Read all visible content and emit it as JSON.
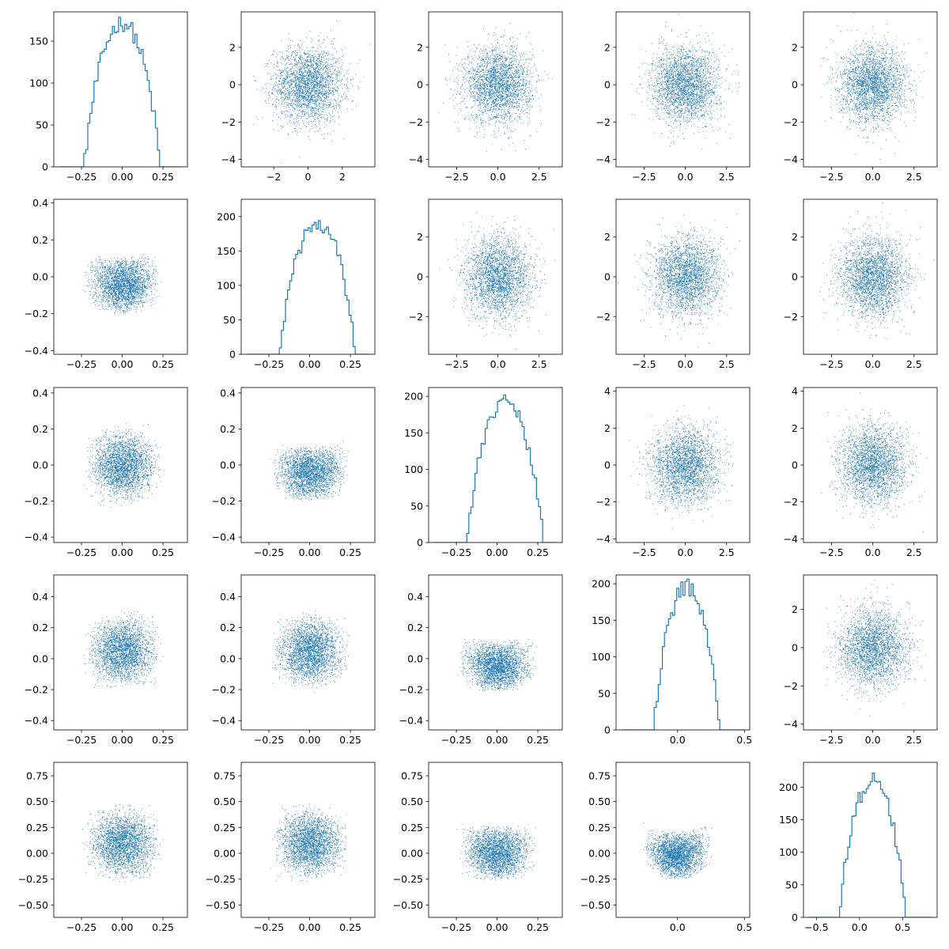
{
  "figure": {
    "background": "#ffffff",
    "series_color": "#1f77b4"
  },
  "chart_data": {
    "type": "pairplot",
    "description_note": "",
    "rows": 5,
    "cols": 5,
    "dims": [
      {
        "ylim": [
          -4.4,
          3.9
        ],
        "yticks": [
          -4,
          -2,
          0,
          2
        ],
        "xlim": [
          -3.9,
          3.9
        ],
        "xticks_first_col": [
          -2,
          0,
          2
        ]
      },
      {
        "ylim": [
          -3.9,
          3.9
        ],
        "yticks": [
          -2,
          0,
          2
        ],
        "xlim": [
          -4.2,
          3.9
        ],
        "xticks": [
          -2.5,
          0.0,
          2.5
        ]
      },
      {
        "ylim": [
          -4.2,
          4.2
        ],
        "yticks": [
          -4,
          -2,
          0,
          2,
          4
        ],
        "xlim": [
          -4.2,
          3.9
        ],
        "xticks": [
          -2.5,
          0.0,
          2.5
        ]
      },
      {
        "ylim": [
          -4.3,
          3.8
        ],
        "yticks": [
          -4,
          -2,
          0,
          2
        ],
        "xlim": [
          -4.2,
          3.9
        ],
        "xticks": [
          -2.5,
          0.0,
          2.5
        ]
      },
      {
        "ylim": [
          -4.3,
          3.8
        ],
        "yticks": [
          -4,
          -2,
          0,
          2
        ],
        "xlim": [
          -4.2,
          3.9
        ],
        "xticks": [
          -2.5,
          0.0,
          2.5
        ]
      }
    ],
    "panels": [
      [
        {
          "kind": "hist",
          "xlim": [
            -0.42,
            0.4
          ],
          "xticks": [
            -0.25,
            0.0,
            0.25
          ],
          "ylim": [
            0,
            185
          ],
          "yticks": [
            0,
            50,
            100,
            150
          ],
          "center": 0.0,
          "spread": 0.15,
          "peak": 172
        },
        {
          "kind": "scatter",
          "xlim": [
            -3.9,
            3.9
          ],
          "xticks": [
            -2,
            0,
            2
          ],
          "ylim": [
            -4.4,
            3.9
          ],
          "yticks": [
            -4,
            -2,
            0,
            2
          ],
          "shape": "gauss"
        },
        {
          "kind": "scatter",
          "xlim": [
            -4.2,
            3.9
          ],
          "xticks": [
            -2.5,
            0.0,
            2.5
          ],
          "ylim": [
            -4.4,
            3.9
          ],
          "yticks": [
            -4,
            -2,
            0,
            2
          ],
          "shape": "gauss"
        },
        {
          "kind": "scatter",
          "xlim": [
            -4.2,
            3.9
          ],
          "xticks": [
            -2.5,
            0.0,
            2.5
          ],
          "ylim": [
            -4.4,
            3.9
          ],
          "yticks": [
            -4,
            -2,
            0,
            2
          ],
          "shape": "gauss"
        },
        {
          "kind": "scatter",
          "xlim": [
            -4.2,
            3.9
          ],
          "xticks": [
            -2.5,
            0.0,
            2.5
          ],
          "ylim": [
            -4.4,
            3.9
          ],
          "yticks": [
            -4,
            -2,
            0,
            2
          ],
          "shape": "gauss"
        }
      ],
      [
        {
          "kind": "scatter",
          "xlim": [
            -0.42,
            0.4
          ],
          "xticks": [
            -0.25,
            0.0,
            0.25
          ],
          "ylim": [
            -0.42,
            0.42
          ],
          "yticks": [
            -0.4,
            -0.2,
            0.0,
            0.2,
            0.4
          ],
          "shape": "vee",
          "sx": 0.15,
          "sy": 0.13,
          "curv": 0.8
        },
        {
          "kind": "hist",
          "xlim": [
            -0.42,
            0.4
          ],
          "xticks": [
            -0.25,
            0.0,
            0.25
          ],
          "ylim": [
            0,
            225
          ],
          "yticks": [
            0,
            50,
            100,
            150,
            200
          ],
          "center": 0.05,
          "spread": 0.15,
          "peak": 190
        },
        {
          "kind": "scatter",
          "xlim": [
            -4.2,
            3.9
          ],
          "xticks": [
            -2.5,
            0.0,
            2.5
          ],
          "ylim": [
            -3.9,
            3.9
          ],
          "yticks": [
            -2,
            0,
            2
          ],
          "shape": "gauss"
        },
        {
          "kind": "scatter",
          "xlim": [
            -4.2,
            3.9
          ],
          "xticks": [
            -2.5,
            0.0,
            2.5
          ],
          "ylim": [
            -3.9,
            3.9
          ],
          "yticks": [
            -2,
            0,
            2
          ],
          "shape": "gauss"
        },
        {
          "kind": "scatter",
          "xlim": [
            -4.2,
            3.9
          ],
          "xticks": [
            -2.5,
            0.0,
            2.5
          ],
          "ylim": [
            -3.9,
            3.9
          ],
          "yticks": [
            -2,
            0,
            2
          ],
          "shape": "gauss"
        }
      ],
      [
        {
          "kind": "scatter",
          "xlim": [
            -0.42,
            0.4
          ],
          "xticks": [
            -0.25,
            0.0,
            0.25
          ],
          "ylim": [
            -0.43,
            0.43
          ],
          "yticks": [
            -0.4,
            -0.2,
            0.0,
            0.2,
            0.4
          ],
          "shape": "box",
          "sx": 0.15,
          "sy": 0.14
        },
        {
          "kind": "scatter",
          "xlim": [
            -0.42,
            0.4
          ],
          "xticks": [
            -0.25,
            0.0,
            0.25
          ],
          "ylim": [
            -0.43,
            0.43
          ],
          "yticks": [
            -0.4,
            -0.2,
            0.0,
            0.2,
            0.4
          ],
          "shape": "vee",
          "sx": 0.15,
          "sy": 0.13,
          "curv": 0.7
        },
        {
          "kind": "hist",
          "xlim": [
            -0.42,
            0.4
          ],
          "xticks": [
            -0.25,
            0.0,
            0.25
          ],
          "ylim": [
            0,
            212
          ],
          "yticks": [
            0,
            50,
            100,
            150,
            200
          ],
          "center": 0.05,
          "spread": 0.15,
          "peak": 195
        },
        {
          "kind": "scatter",
          "xlim": [
            -4.2,
            3.9
          ],
          "xticks": [
            -2.5,
            0.0,
            2.5
          ],
          "ylim": [
            -4.2,
            4.2
          ],
          "yticks": [
            -4,
            -2,
            0,
            2,
            4
          ],
          "shape": "gauss"
        },
        {
          "kind": "scatter",
          "xlim": [
            -4.2,
            3.9
          ],
          "xticks": [
            -2.5,
            0.0,
            2.5
          ],
          "ylim": [
            -4.2,
            4.2
          ],
          "yticks": [
            -4,
            -2,
            0,
            2,
            4
          ],
          "shape": "gauss"
        }
      ],
      [
        {
          "kind": "scatter",
          "xlim": [
            -0.42,
            0.4
          ],
          "xticks": [
            -0.25,
            0.0,
            0.25
          ],
          "ylim": [
            -0.46,
            0.54
          ],
          "yticks": [
            -0.4,
            -0.2,
            0.0,
            0.2,
            0.4
          ],
          "shape": "box",
          "sx": 0.15,
          "sy": 0.16,
          "cy": 0.05
        },
        {
          "kind": "scatter",
          "xlim": [
            -0.42,
            0.4
          ],
          "xticks": [
            -0.25,
            0.0,
            0.25
          ],
          "ylim": [
            -0.46,
            0.54
          ],
          "yticks": [
            -0.4,
            -0.2,
            0.0,
            0.2,
            0.4
          ],
          "shape": "box",
          "sx": 0.15,
          "sy": 0.16,
          "cy": 0.05
        },
        {
          "kind": "scatter",
          "xlim": [
            -0.42,
            0.4
          ],
          "xticks": [
            -0.25,
            0.0,
            0.25
          ],
          "ylim": [
            -0.46,
            0.54
          ],
          "yticks": [
            -0.4,
            -0.2,
            0.0,
            0.2,
            0.4
          ],
          "shape": "vee",
          "sx": 0.15,
          "sy": 0.14,
          "curv": 0.9
        },
        {
          "kind": "hist",
          "xlim": [
            -0.46,
            0.54
          ],
          "xticks": [
            0.0,
            0.5
          ],
          "ylim": [
            0,
            212
          ],
          "yticks": [
            0,
            50,
            100,
            150,
            200
          ],
          "center": 0.07,
          "spread": 0.16,
          "peak": 195
        },
        {
          "kind": "scatter",
          "xlim": [
            -4.2,
            3.9
          ],
          "xticks": [
            -2.5,
            0.0,
            2.5
          ],
          "ylim": [
            -4.3,
            3.8
          ],
          "yticks": [
            -4,
            -2,
            0,
            2
          ],
          "shape": "gauss"
        }
      ],
      [
        {
          "kind": "scatter",
          "xlim": [
            -0.42,
            0.4
          ],
          "xticks": [
            -0.25,
            0.0,
            0.25
          ],
          "ylim": [
            -0.62,
            0.88
          ],
          "yticks": [
            -0.5,
            -0.25,
            0.0,
            0.25,
            0.5,
            0.75
          ],
          "shape": "box",
          "sx": 0.15,
          "sy": 0.24,
          "cy": 0.1
        },
        {
          "kind": "scatter",
          "xlim": [
            -0.42,
            0.4
          ],
          "xticks": [
            -0.25,
            0.0,
            0.25
          ],
          "ylim": [
            -0.62,
            0.88
          ],
          "yticks": [
            -0.5,
            -0.25,
            0.0,
            0.25,
            0.5,
            0.75
          ],
          "shape": "box",
          "sx": 0.15,
          "sy": 0.24,
          "cy": 0.1
        },
        {
          "kind": "scatter",
          "xlim": [
            -0.42,
            0.4
          ],
          "xticks": [
            -0.25,
            0.0,
            0.25
          ],
          "ylim": [
            -0.62,
            0.88
          ],
          "yticks": [
            -0.5,
            -0.25,
            0.0,
            0.25,
            0.5,
            0.75
          ],
          "shape": "vee",
          "sx": 0.15,
          "sy": 0.22,
          "curv": 0.8,
          "cy": 0.08
        },
        {
          "kind": "scatter",
          "xlim": [
            -0.46,
            0.54
          ],
          "xticks": [
            0.0,
            0.5
          ],
          "ylim": [
            -0.62,
            0.88
          ],
          "yticks": [
            -0.5,
            -0.25,
            0.0,
            0.25,
            0.5,
            0.75
          ],
          "shape": "vee",
          "sx": 0.16,
          "sy": 0.2,
          "curv": 1.6,
          "cy": 0.05
        },
        {
          "kind": "hist",
          "xlim": [
            -0.65,
            0.9
          ],
          "xticks": [
            -0.5,
            0.0,
            0.5
          ],
          "ylim": [
            0,
            238
          ],
          "yticks": [
            0,
            50,
            100,
            150,
            200
          ],
          "center": 0.15,
          "spread": 0.25,
          "peak": 210
        }
      ]
    ]
  }
}
